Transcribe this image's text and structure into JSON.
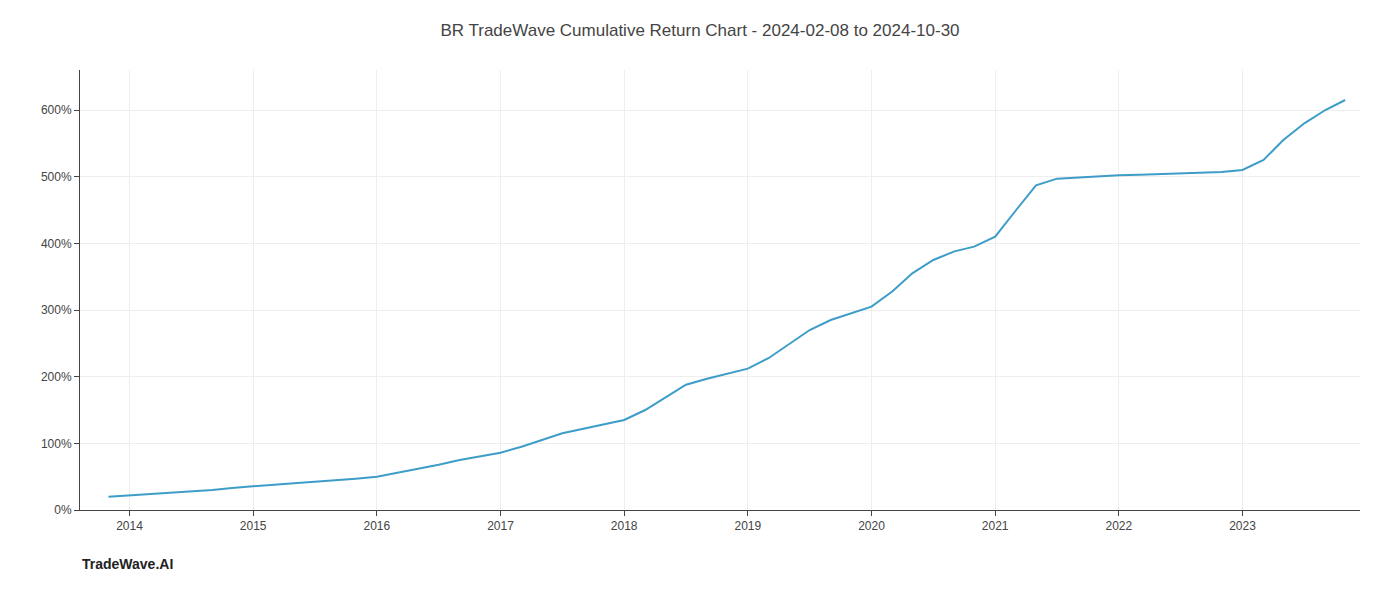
{
  "chart_data": {
    "type": "line",
    "title": "BR TradeWave Cumulative Return Chart - 2024-02-08 to 2024-10-30",
    "annotations": [
      "TradeWave.AI"
    ],
    "color": "#3d9dc8",
    "x": [
      2013.83,
      2014.0,
      2014.17,
      2014.33,
      2014.5,
      2014.67,
      2014.83,
      2015.0,
      2015.17,
      2015.33,
      2015.5,
      2015.67,
      2015.83,
      2016.0,
      2016.17,
      2016.33,
      2016.5,
      2016.67,
      2016.83,
      2017.0,
      2017.17,
      2017.33,
      2017.5,
      2017.67,
      2017.83,
      2018.0,
      2018.17,
      2018.33,
      2018.5,
      2018.67,
      2018.83,
      2019.0,
      2019.17,
      2019.33,
      2019.5,
      2019.67,
      2019.83,
      2020.0,
      2020.17,
      2020.33,
      2020.5,
      2020.67,
      2020.83,
      2021.0,
      2021.17,
      2021.33,
      2021.5,
      2021.67,
      2021.83,
      2022.0,
      2022.17,
      2022.33,
      2022.5,
      2022.67,
      2022.83,
      2023.0,
      2023.17,
      2023.33,
      2023.5,
      2023.67,
      2023.83
    ],
    "values": [
      20,
      22,
      24,
      26,
      28,
      30,
      33,
      36,
      38,
      40,
      42,
      44,
      47,
      50,
      56,
      62,
      68,
      75,
      80,
      86,
      95,
      105,
      115,
      122,
      128,
      135,
      150,
      168,
      188,
      197,
      204,
      212,
      228,
      248,
      270,
      285,
      295,
      305,
      328,
      355,
      375,
      388,
      395,
      410,
      450,
      487,
      497,
      499,
      500,
      502,
      503,
      504,
      505,
      506,
      507,
      510,
      525,
      555,
      580,
      600,
      615
    ],
    "xlim": [
      2013.6,
      2023.95
    ],
    "xticks": [
      2014,
      2015,
      2016,
      2017,
      2018,
      2019,
      2020,
      2021,
      2022,
      2023
    ],
    "ylim": [
      0,
      660
    ],
    "yticks": [
      {
        "value": 0,
        "label": "0%"
      },
      {
        "value": 100,
        "label": "100%"
      },
      {
        "value": 200,
        "label": "200%"
      },
      {
        "value": 300,
        "label": "300%"
      },
      {
        "value": 400,
        "label": "400%"
      },
      {
        "value": 500,
        "label": "500%"
      },
      {
        "value": 600,
        "label": "600%"
      }
    ],
    "grid": true
  }
}
